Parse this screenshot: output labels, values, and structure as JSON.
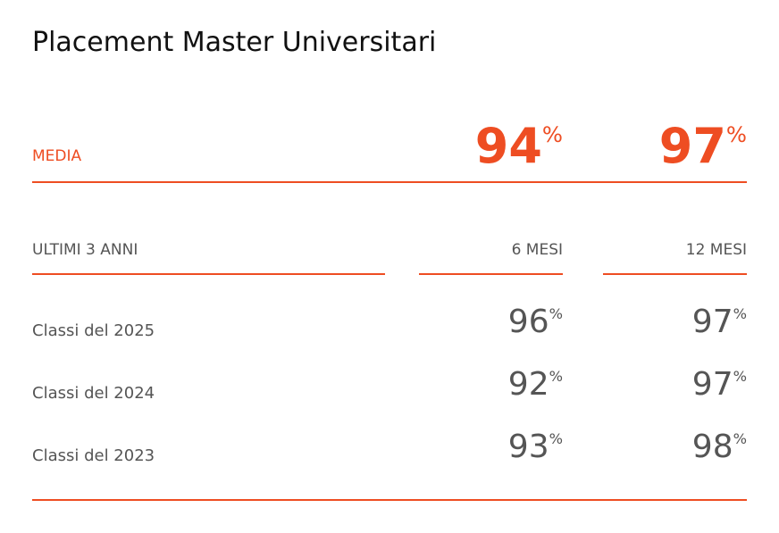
{
  "title": "Placement Master Universitari",
  "average": {
    "label": "MEDIA",
    "values": [
      {
        "number": 94,
        "unit": "%"
      },
      {
        "number": 97,
        "unit": "%"
      }
    ]
  },
  "table": {
    "header": [
      "ULTIMI 3 ANNI",
      "6 MESI",
      "12 MESI"
    ],
    "rows": [
      {
        "label": "Classi del 2025",
        "values": [
          {
            "number": 96,
            "unit": "%"
          },
          {
            "number": 97,
            "unit": "%"
          }
        ]
      },
      {
        "label": "Classi del 2024",
        "values": [
          {
            "number": 92,
            "unit": "%"
          },
          {
            "number": 97,
            "unit": "%"
          }
        ]
      },
      {
        "label": "Classi del 2023",
        "values": [
          {
            "number": 93,
            "unit": "%"
          },
          {
            "number": 98,
            "unit": "%"
          }
        ]
      }
    ]
  }
}
